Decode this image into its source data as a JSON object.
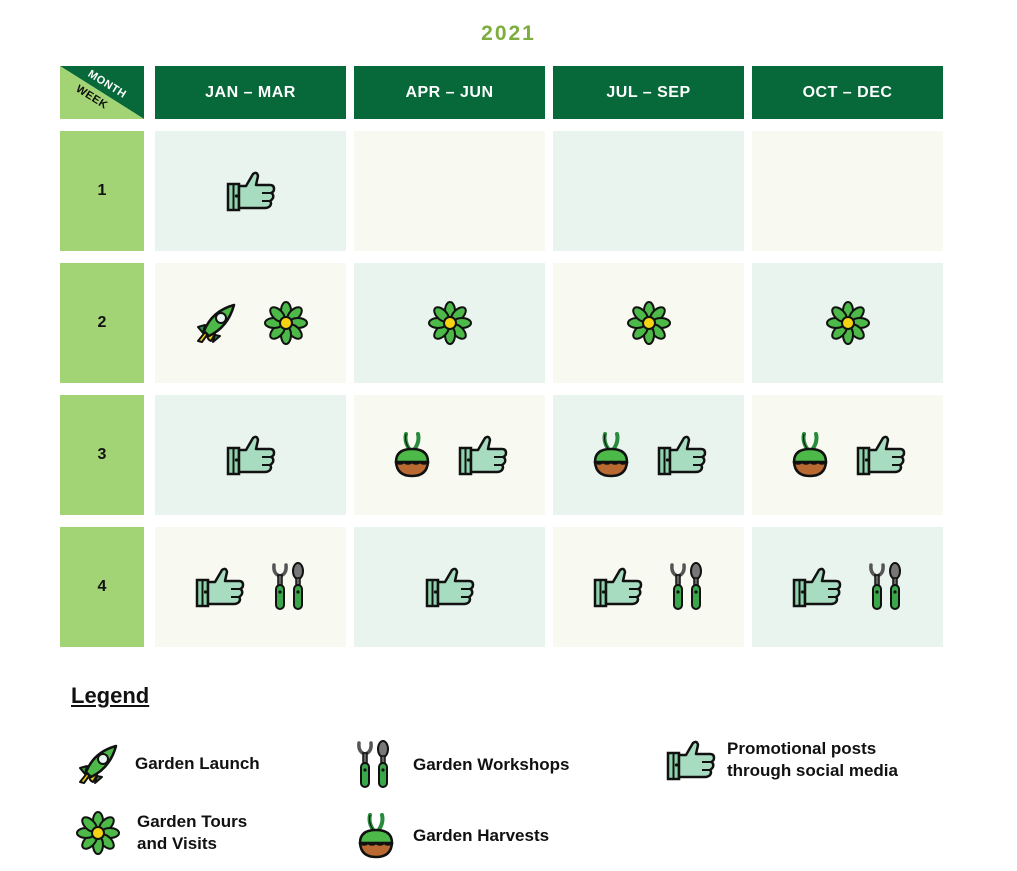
{
  "title": "2021",
  "corner": {
    "month_label": "MONTH",
    "week_label": "WEEK"
  },
  "columns": [
    "JAN – MAR",
    "APR – JUN",
    "JUL – SEP",
    "OCT – DEC"
  ],
  "weeks": [
    "1",
    "2",
    "3",
    "4"
  ],
  "grid": [
    [
      [
        "promo"
      ],
      [],
      [],
      []
    ],
    [
      [
        "launch",
        "tours"
      ],
      [
        "tours"
      ],
      [
        "tours"
      ],
      [
        "tours"
      ]
    ],
    [
      [
        "promo"
      ],
      [
        "harvest",
        "promo"
      ],
      [
        "harvest",
        "promo"
      ],
      [
        "harvest",
        "promo"
      ]
    ],
    [
      [
        "promo",
        "workshop"
      ],
      [
        "promo"
      ],
      [
        "promo",
        "workshop"
      ],
      [
        "promo",
        "workshop"
      ]
    ]
  ],
  "legend": {
    "title": "Legend",
    "items": [
      {
        "key": "launch",
        "icon": "rocket-icon",
        "label": "Garden Launch"
      },
      {
        "key": "workshop",
        "icon": "garden-tools-icon",
        "label": "Garden Workshops"
      },
      {
        "key": "promo",
        "icon": "thumbs-up-icon",
        "label": "Promotional posts\nthrough social media"
      },
      {
        "key": "tours",
        "icon": "flower-icon",
        "label": "Garden Tours\nand Visits"
      },
      {
        "key": "harvest",
        "icon": "harvest-bulb-icon",
        "label": "Garden Harvests"
      }
    ]
  },
  "colors": {
    "header_green": "#07683a",
    "week_green": "#a2d374",
    "title_green": "#7cad3e",
    "cell_light": "#f8faf1",
    "cell_mint": "#e9f4ee"
  }
}
